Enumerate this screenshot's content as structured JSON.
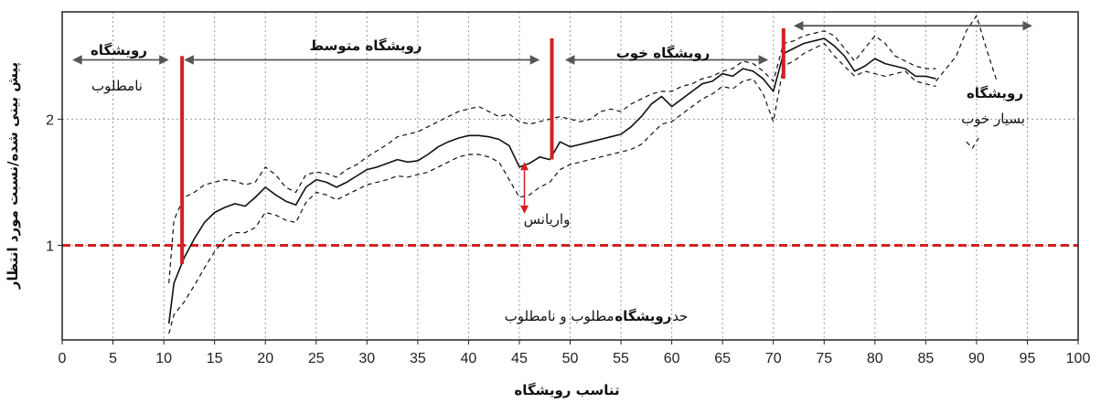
{
  "chart_data": {
    "type": "line",
    "xlabel": "تناسب رویشگاه",
    "ylabel": "پیش بینی شده/نسبت مورد انتظار",
    "xlim": [
      0,
      100
    ],
    "ylim": [
      0.25,
      2.85
    ],
    "x_ticks": [
      0,
      5,
      10,
      15,
      20,
      25,
      30,
      35,
      40,
      45,
      50,
      55,
      60,
      65,
      70,
      75,
      80,
      85,
      90,
      95,
      100
    ],
    "y_ticks": [
      1,
      2
    ],
    "grid": true,
    "series": [
      {
        "style": "solid",
        "x": [
          10.5,
          11,
          12,
          13,
          14,
          15,
          16,
          17,
          18,
          19,
          20,
          21,
          22,
          23,
          24,
          25,
          26,
          27,
          28,
          29,
          30,
          31,
          32,
          33,
          34,
          35,
          36,
          37,
          38,
          39,
          40,
          41,
          42,
          43,
          44,
          45,
          46,
          47,
          48,
          49,
          50,
          51,
          52,
          53,
          54,
          55,
          56,
          57,
          58,
          59,
          60,
          61,
          62,
          63,
          64,
          65,
          66,
          67,
          68,
          69,
          70,
          71,
          72,
          73,
          74,
          75,
          76,
          77,
          78,
          79,
          80,
          81,
          82,
          83,
          84,
          85,
          86
        ],
        "values": [
          0.38,
          0.7,
          0.9,
          1.05,
          1.18,
          1.26,
          1.3,
          1.33,
          1.31,
          1.38,
          1.46,
          1.4,
          1.35,
          1.32,
          1.46,
          1.52,
          1.5,
          1.46,
          1.5,
          1.55,
          1.6,
          1.62,
          1.65,
          1.68,
          1.66,
          1.67,
          1.72,
          1.78,
          1.82,
          1.85,
          1.87,
          1.87,
          1.86,
          1.84,
          1.79,
          1.62,
          1.65,
          1.7,
          1.68,
          1.82,
          1.78,
          1.8,
          1.82,
          1.84,
          1.86,
          1.88,
          1.94,
          2.02,
          2.12,
          2.18,
          2.1,
          2.16,
          2.22,
          2.28,
          2.3,
          2.36,
          2.34,
          2.4,
          2.38,
          2.32,
          2.22,
          2.52,
          2.56,
          2.6,
          2.62,
          2.64,
          2.58,
          2.5,
          2.38,
          2.42,
          2.48,
          2.44,
          2.42,
          2.4,
          2.34,
          2.34,
          2.32
        ]
      },
      {
        "style": "dashed",
        "x": [
          10.5,
          11,
          12,
          13,
          14,
          15,
          16,
          17,
          18,
          19,
          20,
          21,
          22,
          23,
          24,
          25,
          26,
          27,
          28,
          29,
          30,
          31,
          32,
          33,
          34,
          35,
          36,
          37,
          38,
          39,
          40,
          41,
          42,
          43,
          44,
          45,
          46,
          47,
          48,
          49,
          50,
          51,
          52,
          53,
          54,
          55,
          56,
          57,
          58,
          59,
          60,
          61,
          62,
          63,
          64,
          65,
          66,
          67,
          68,
          69,
          70,
          71,
          72,
          73,
          74,
          75,
          76,
          77,
          78,
          79,
          80,
          81,
          82,
          83,
          84,
          85,
          86
        ],
        "values": [
          0.7,
          1.2,
          1.38,
          1.42,
          1.48,
          1.5,
          1.52,
          1.51,
          1.48,
          1.5,
          1.62,
          1.56,
          1.46,
          1.42,
          1.56,
          1.58,
          1.57,
          1.54,
          1.6,
          1.64,
          1.7,
          1.75,
          1.8,
          1.86,
          1.88,
          1.9,
          1.94,
          1.98,
          2.02,
          2.06,
          2.08,
          2.1,
          2.06,
          2.02,
          2.04,
          1.98,
          1.96,
          1.98,
          2.0,
          2.02,
          2.0,
          1.98,
          2.0,
          2.06,
          2.08,
          2.06,
          2.12,
          2.16,
          2.2,
          2.22,
          2.22,
          2.26,
          2.28,
          2.32,
          2.34,
          2.38,
          2.4,
          2.46,
          2.44,
          2.38,
          2.3,
          2.6,
          2.62,
          2.66,
          2.68,
          2.7,
          2.66,
          2.56,
          2.46,
          2.56,
          2.66,
          2.6,
          2.5,
          2.46,
          2.42,
          2.4,
          2.4
        ]
      },
      {
        "style": "dashed",
        "x": [
          10.5,
          11,
          12,
          13,
          14,
          15,
          16,
          17,
          18,
          19,
          20,
          21,
          22,
          23,
          24,
          25,
          26,
          27,
          28,
          29,
          30,
          31,
          32,
          33,
          34,
          35,
          36,
          37,
          38,
          39,
          40,
          41,
          42,
          43,
          44,
          45,
          46,
          47,
          48,
          49,
          50,
          51,
          52,
          53,
          54,
          55,
          56,
          57,
          58,
          59,
          60,
          61,
          62,
          63,
          64,
          65,
          66,
          67,
          68,
          69,
          70,
          71,
          72,
          73,
          74,
          75,
          76,
          77,
          78,
          79,
          80,
          81,
          82,
          83,
          84,
          85,
          86
        ],
        "values": [
          0.3,
          0.45,
          0.55,
          0.68,
          0.82,
          0.95,
          1.05,
          1.1,
          1.1,
          1.14,
          1.26,
          1.24,
          1.2,
          1.18,
          1.34,
          1.42,
          1.4,
          1.36,
          1.4,
          1.44,
          1.48,
          1.5,
          1.52,
          1.55,
          1.54,
          1.56,
          1.58,
          1.62,
          1.66,
          1.7,
          1.72,
          1.72,
          1.7,
          1.66,
          1.52,
          1.38,
          1.4,
          1.46,
          1.5,
          1.6,
          1.64,
          1.66,
          1.68,
          1.7,
          1.72,
          1.74,
          1.76,
          1.8,
          1.88,
          1.96,
          1.98,
          2.04,
          2.1,
          2.16,
          2.2,
          2.26,
          2.24,
          2.3,
          2.32,
          2.2,
          1.98,
          2.42,
          2.46,
          2.52,
          2.56,
          2.6,
          2.5,
          2.42,
          2.34,
          2.38,
          2.36,
          2.34,
          2.36,
          2.38,
          2.3,
          2.28,
          2.26
        ]
      },
      {
        "style": "dashed",
        "x": [
          86,
          87,
          88,
          89,
          90,
          91,
          92
        ],
        "values": [
          2.3,
          2.4,
          2.5,
          2.7,
          2.82,
          2.55,
          2.3
        ]
      },
      {
        "style": "dashed",
        "x": [
          89,
          89.6,
          90.2
        ],
        "values": [
          1.82,
          1.77,
          1.85
        ]
      }
    ],
    "reference_line": {
      "y": 1,
      "color": "#d62020",
      "style": "dashed"
    },
    "dividers": [
      {
        "x": 11.8,
        "y_from": 0.85,
        "y_to": 2.5
      },
      {
        "x": 48.2,
        "y_from": 1.68,
        "y_to": 2.64
      },
      {
        "x": 71,
        "y_from": 2.32,
        "y_to": 2.72
      }
    ],
    "range_arrows": [
      {
        "x1": 1,
        "x2": 10.5,
        "y": 2.47
      },
      {
        "x1": 12,
        "x2": 47,
        "y": 2.47
      },
      {
        "x1": 49.5,
        "x2": 69.5,
        "y": 2.47
      },
      {
        "x1": 72,
        "x2": 95.5,
        "y": 2.74
      }
    ],
    "variance_arrow": {
      "x": 45.5,
      "y_from": 1.66,
      "y_to": 1.25,
      "color": "#d62020"
    },
    "annotations": {
      "poor_title": "رویشگاه",
      "poor_sub": "نامطلوب",
      "medium": "رویشگاه متوسط",
      "good": "رویشگاه خوب",
      "very_good_title": "رویشگاه",
      "very_good_sub": "بسیار خوب",
      "variance": "واریانس",
      "threshold_a": "حد",
      "threshold_b": "رویشگاه",
      "threshold_c": "مطلوب و نامطلوب"
    },
    "colors": {
      "line": "#111111",
      "accent": "#d62020",
      "grid": "#9a9a9a",
      "arrow": "#555555"
    }
  }
}
